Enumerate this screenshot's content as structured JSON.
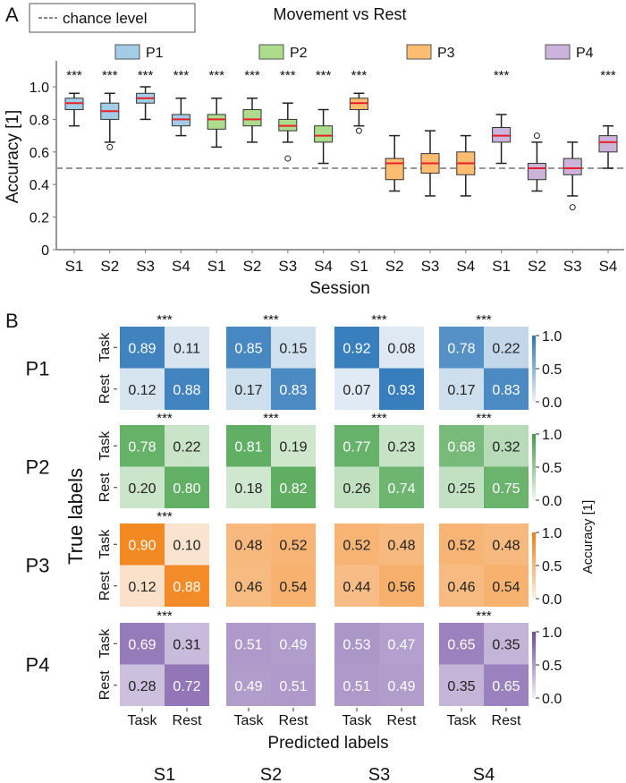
{
  "panels": {
    "a": "A",
    "b": "B"
  },
  "chart_data": [
    {
      "type": "box",
      "title": "Movement vs Rest",
      "xlabel": "Session",
      "ylabel": "Accuracy [1]",
      "ylim": [
        0,
        1.15
      ],
      "yticks": [
        0,
        0.2,
        0.4,
        0.6,
        0.8,
        1.0
      ],
      "ytick_labels": [
        "0",
        "0.2",
        "0.4",
        "0.6",
        "0.8",
        "1.0"
      ],
      "chance_level": 0.5,
      "chance_label": "chance level",
      "median_color": "#e8202a",
      "legend": [
        {
          "name": "P1",
          "color": "#a3cde6"
        },
        {
          "name": "P2",
          "color": "#acdc8c"
        },
        {
          "name": "P3",
          "color": "#fdbd71"
        },
        {
          "name": "P4",
          "color": "#cbb3d9"
        }
      ],
      "groups": [
        {
          "participant": "P1",
          "sessions": [
            {
              "session": "S1",
              "whisker_low": 0.76,
              "q1": 0.86,
              "median": 0.9,
              "q3": 0.93,
              "whisker_high": 0.96,
              "outliers": [],
              "significance": "***"
            },
            {
              "session": "S2",
              "whisker_low": 0.66,
              "q1": 0.8,
              "median": 0.85,
              "q3": 0.9,
              "whisker_high": 0.96,
              "outliers": [
                0.63
              ],
              "significance": "***"
            },
            {
              "session": "S3",
              "whisker_low": 0.8,
              "q1": 0.9,
              "median": 0.93,
              "q3": 0.96,
              "whisker_high": 1.0,
              "outliers": [],
              "significance": "***"
            },
            {
              "session": "S4",
              "whisker_low": 0.7,
              "q1": 0.76,
              "median": 0.8,
              "q3": 0.83,
              "whisker_high": 0.93,
              "outliers": [],
              "significance": "***"
            }
          ]
        },
        {
          "participant": "P2",
          "sessions": [
            {
              "session": "S1",
              "whisker_low": 0.63,
              "q1": 0.74,
              "median": 0.8,
              "q3": 0.83,
              "whisker_high": 0.93,
              "outliers": [],
              "significance": "***"
            },
            {
              "session": "S2",
              "whisker_low": 0.66,
              "q1": 0.76,
              "median": 0.8,
              "q3": 0.86,
              "whisker_high": 0.93,
              "outliers": [],
              "significance": "***"
            },
            {
              "session": "S3",
              "whisker_low": 0.66,
              "q1": 0.73,
              "median": 0.76,
              "q3": 0.8,
              "whisker_high": 0.9,
              "outliers": [
                0.56
              ],
              "significance": "***"
            },
            {
              "session": "S4",
              "whisker_low": 0.53,
              "q1": 0.66,
              "median": 0.7,
              "q3": 0.76,
              "whisker_high": 0.86,
              "outliers": [],
              "significance": "***"
            }
          ]
        },
        {
          "participant": "P3",
          "sessions": [
            {
              "session": "S1",
              "whisker_low": 0.76,
              "q1": 0.86,
              "median": 0.9,
              "q3": 0.93,
              "whisker_high": 0.96,
              "outliers": [
                0.73
              ],
              "significance": "***"
            },
            {
              "session": "S2",
              "whisker_low": 0.36,
              "q1": 0.43,
              "median": 0.53,
              "q3": 0.56,
              "whisker_high": 0.7,
              "outliers": [],
              "significance": ""
            },
            {
              "session": "S3",
              "whisker_low": 0.33,
              "q1": 0.47,
              "median": 0.53,
              "q3": 0.59,
              "whisker_high": 0.73,
              "outliers": [],
              "significance": ""
            },
            {
              "session": "S4",
              "whisker_low": 0.33,
              "q1": 0.46,
              "median": 0.53,
              "q3": 0.6,
              "whisker_high": 0.7,
              "outliers": [],
              "significance": ""
            }
          ]
        },
        {
          "participant": "P4",
          "sessions": [
            {
              "session": "S1",
              "whisker_low": 0.53,
              "q1": 0.66,
              "median": 0.7,
              "q3": 0.75,
              "whisker_high": 0.83,
              "outliers": [],
              "significance": "***"
            },
            {
              "session": "S2",
              "whisker_low": 0.36,
              "q1": 0.43,
              "median": 0.5,
              "q3": 0.53,
              "whisker_high": 0.66,
              "outliers": [
                0.7
              ],
              "significance": ""
            },
            {
              "session": "S3",
              "whisker_low": 0.33,
              "q1": 0.46,
              "median": 0.5,
              "q3": 0.56,
              "whisker_high": 0.66,
              "outliers": [
                0.26
              ],
              "significance": ""
            },
            {
              "session": "S4",
              "whisker_low": 0.5,
              "q1": 0.6,
              "median": 0.66,
              "q3": 0.7,
              "whisker_high": 0.76,
              "outliers": [],
              "significance": "***"
            }
          ]
        }
      ]
    },
    {
      "type": "heatmap",
      "xlabel": "Predicted labels",
      "ylabel": "True labels",
      "colorbar_label": "Accuracy [1]",
      "colorbar_ticks": [
        "1.0",
        "0.5",
        "0.0"
      ],
      "class_labels": [
        "Task",
        "Rest"
      ],
      "sessions": [
        "S1",
        "S2",
        "S3",
        "S4"
      ],
      "participants": [
        {
          "name": "P1",
          "color_low": "#eef3f8",
          "color_high": "#2a75b8",
          "matrices": [
            {
              "values": [
                [
                  0.89,
                  0.11
                ],
                [
                  0.12,
                  0.88
                ]
              ],
              "significance": "***"
            },
            {
              "values": [
                [
                  0.85,
                  0.15
                ],
                [
                  0.17,
                  0.83
                ]
              ],
              "significance": "***"
            },
            {
              "values": [
                [
                  0.92,
                  0.08
                ],
                [
                  0.07,
                  0.93
                ]
              ],
              "significance": "***"
            },
            {
              "values": [
                [
                  0.78,
                  0.22
                ],
                [
                  0.17,
                  0.83
                ]
              ],
              "significance": "***"
            }
          ]
        },
        {
          "name": "P2",
          "color_low": "#eef7ec",
          "color_high": "#3f9e44",
          "matrices": [
            {
              "values": [
                [
                  0.78,
                  0.22
                ],
                [
                  0.2,
                  0.8
                ]
              ],
              "significance": "***"
            },
            {
              "values": [
                [
                  0.81,
                  0.19
                ],
                [
                  0.18,
                  0.82
                ]
              ],
              "significance": "***"
            },
            {
              "values": [
                [
                  0.77,
                  0.23
                ],
                [
                  0.26,
                  0.74
                ]
              ],
              "significance": "***"
            },
            {
              "values": [
                [
                  0.68,
                  0.32
                ],
                [
                  0.25,
                  0.75
                ]
              ],
              "significance": "***"
            }
          ]
        },
        {
          "name": "P3",
          "color_low": "#fcefe4",
          "color_high": "#f27e0e",
          "matrices": [
            {
              "values": [
                [
                  0.9,
                  0.1
                ],
                [
                  0.12,
                  0.88
                ]
              ],
              "significance": "***"
            },
            {
              "values": [
                [
                  0.48,
                  0.52
                ],
                [
                  0.46,
                  0.54
                ]
              ],
              "significance": ""
            },
            {
              "values": [
                [
                  0.52,
                  0.48
                ],
                [
                  0.44,
                  0.56
                ]
              ],
              "significance": ""
            },
            {
              "values": [
                [
                  0.52,
                  0.48
                ],
                [
                  0.46,
                  0.54
                ]
              ],
              "significance": ""
            }
          ]
        },
        {
          "name": "P4",
          "color_low": "#f1eef6",
          "color_high": "#6d48a0",
          "matrices": [
            {
              "values": [
                [
                  0.69,
                  0.31
                ],
                [
                  0.28,
                  0.72
                ]
              ],
              "significance": "***"
            },
            {
              "values": [
                [
                  0.51,
                  0.49
                ],
                [
                  0.49,
                  0.51
                ]
              ],
              "significance": ""
            },
            {
              "values": [
                [
                  0.53,
                  0.47
                ],
                [
                  0.51,
                  0.49
                ]
              ],
              "significance": ""
            },
            {
              "values": [
                [
                  0.65,
                  0.35
                ],
                [
                  0.35,
                  0.65
                ]
              ],
              "significance": "***"
            }
          ]
        }
      ]
    }
  ]
}
